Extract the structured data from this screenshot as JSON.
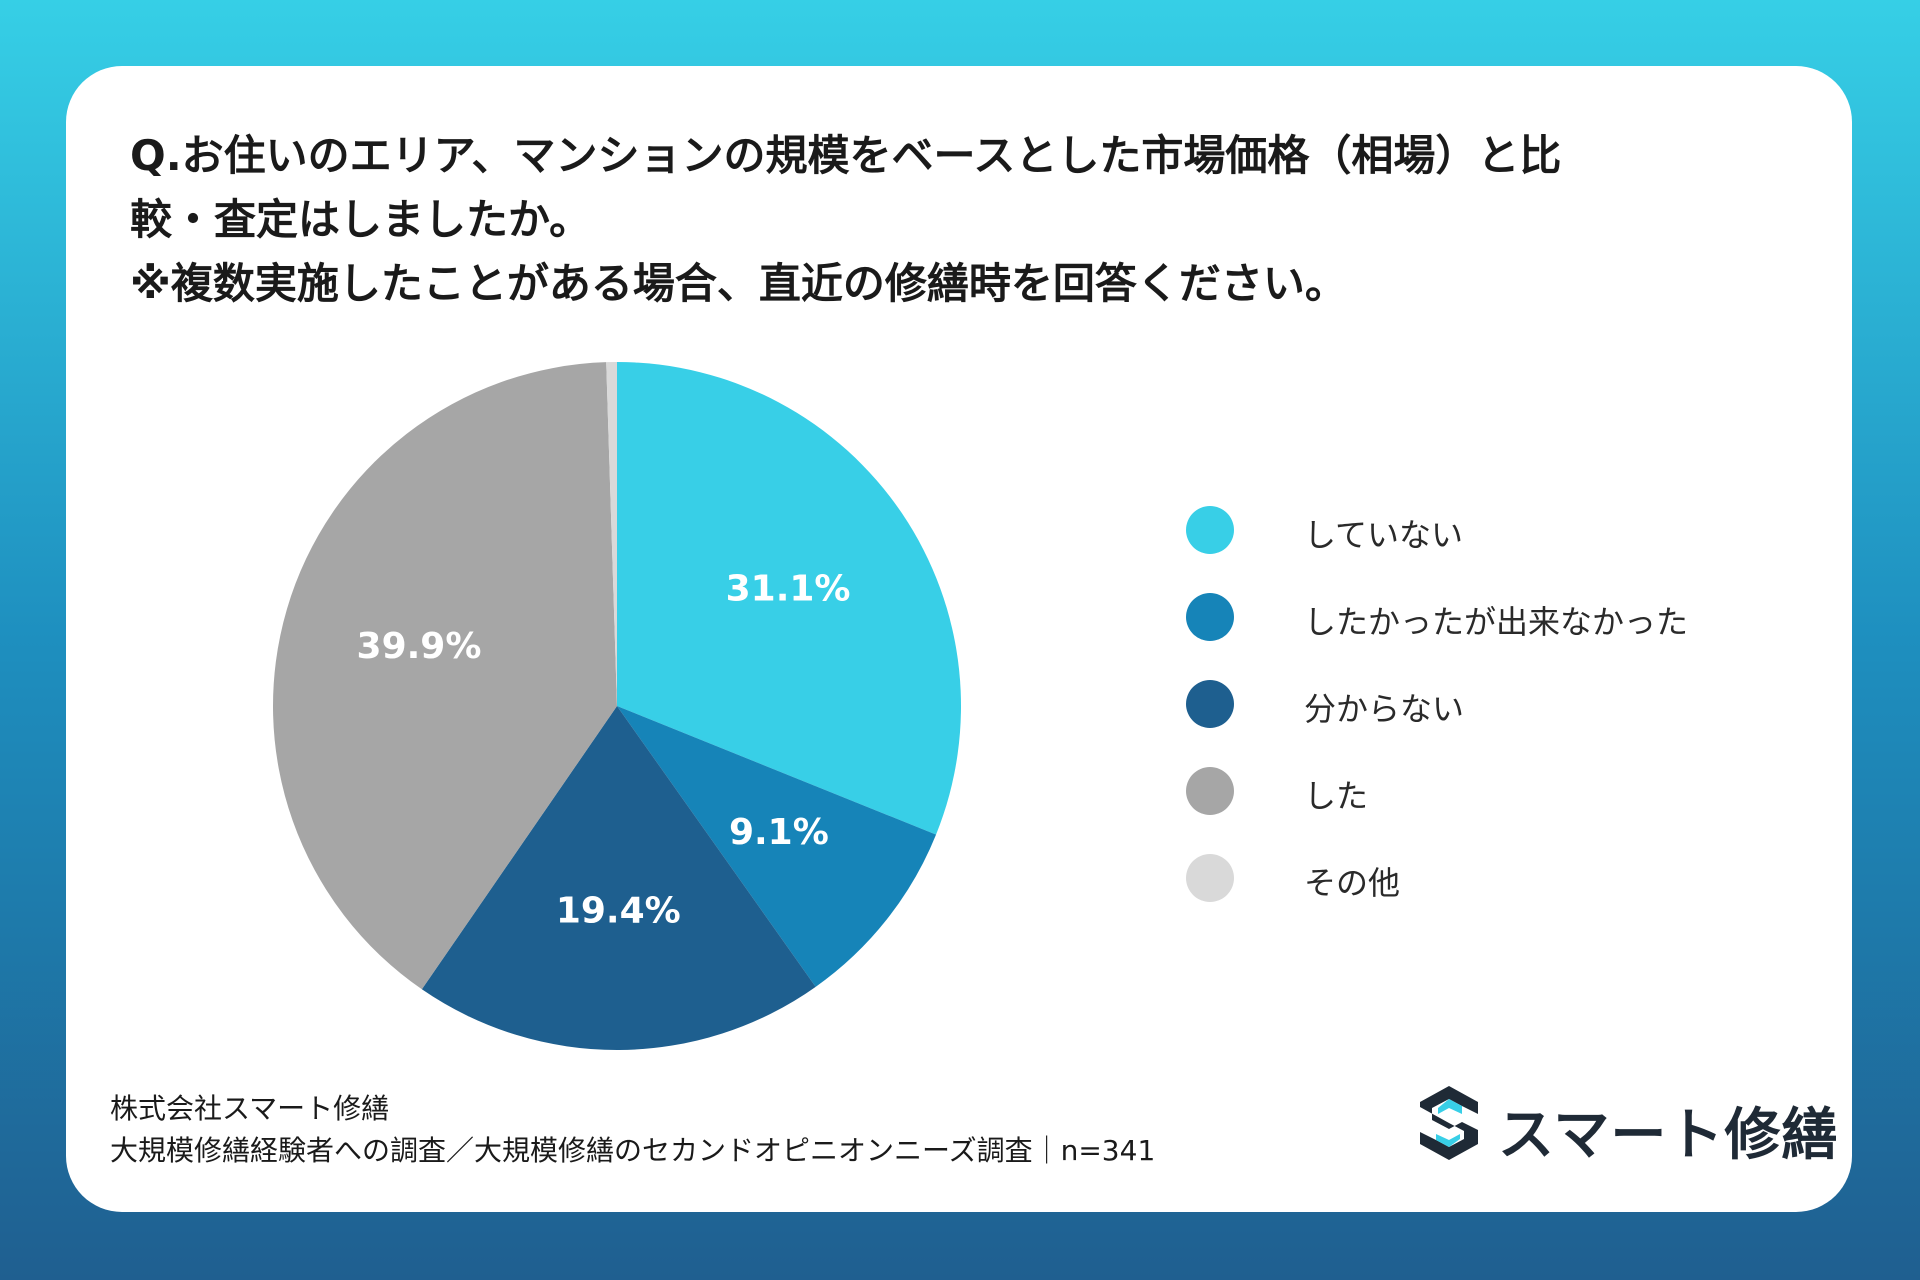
{
  "title_lines": [
    "Q.お住いのエリア、マンションの規模をベースとした市場価格（相場）と比",
    "較・査定はしましたか。",
    "※複数実施したことがある場合、直近の修繕時を回答ください。"
  ],
  "chart_data": {
    "type": "pie",
    "title": "Q.お住いのエリア、マンションの規模をベースとした市場価格（相場）と比較・査定はしましたか。※複数実施したことがある場合、直近の修繕時を回答ください。",
    "categories": [
      "していない",
      "したかったが出来なかった",
      "分からない",
      "した",
      "その他"
    ],
    "values": [
      31.1,
      9.1,
      19.4,
      39.9,
      0.5
    ],
    "labels": [
      "31.1%",
      "9.1%",
      "19.4%",
      "39.9%",
      ""
    ],
    "colors": [
      "#38cfe7",
      "#1684b8",
      "#1e5f8f",
      "#a6a6a6",
      "#d9d9d9"
    ],
    "legend_position": "right"
  },
  "footer": {
    "company": "株式会社スマート修繕",
    "source": "大規模修繕経験者への調査／大規模修繕のセカンドオピニオンニーズ調査｜n=341"
  },
  "logo": {
    "text": "スマート修繕",
    "icon": "s-logo-icon",
    "color": "#1f2a36",
    "accent": "#38cfe7"
  }
}
